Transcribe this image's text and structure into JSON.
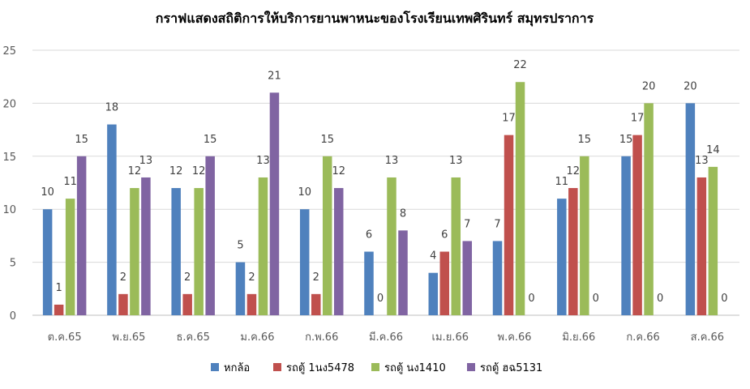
{
  "chart_data": {
    "type": "bar",
    "title": "กราฟแสดงสถิติการให้บริการยานพาหนะของโรงเรียนเทพศิรินทร์ สมุทรปราการ",
    "xlabel": "",
    "ylabel": "",
    "ylim": [
      0,
      25
    ],
    "yticks": [
      0,
      5,
      10,
      15,
      20,
      25
    ],
    "grid": true,
    "legend_position": "bottom",
    "categories": [
      "ต.ค.65",
      "พ.ย.65",
      "ธ.ค.65",
      "ม.ค.66",
      "ก.พ.66",
      "มี.ค.66",
      "เม.ย.66",
      "พ.ค.66",
      "มิ.ย.66",
      "ก.ค.66",
      "ส.ค.66"
    ],
    "series": [
      {
        "name": "หกล้อ",
        "color": "#4f81bd",
        "values": [
          10,
          18,
          12,
          5,
          10,
          6,
          4,
          7,
          11,
          15,
          20
        ]
      },
      {
        "name": "รถตู้ 1นง5478",
        "color": "#c0504d",
        "values": [
          1,
          2,
          2,
          2,
          2,
          0,
          6,
          17,
          12,
          17,
          13
        ]
      },
      {
        "name": "รถตู้ นง1410",
        "color": "#9bbb59",
        "values": [
          11,
          12,
          12,
          13,
          15,
          13,
          13,
          22,
          15,
          20,
          14
        ]
      },
      {
        "name": "รถตู้ ฮฉ5131",
        "color": "#8064a2",
        "values": [
          15,
          13,
          15,
          21,
          12,
          8,
          7,
          0,
          0,
          0,
          0
        ]
      }
    ]
  }
}
